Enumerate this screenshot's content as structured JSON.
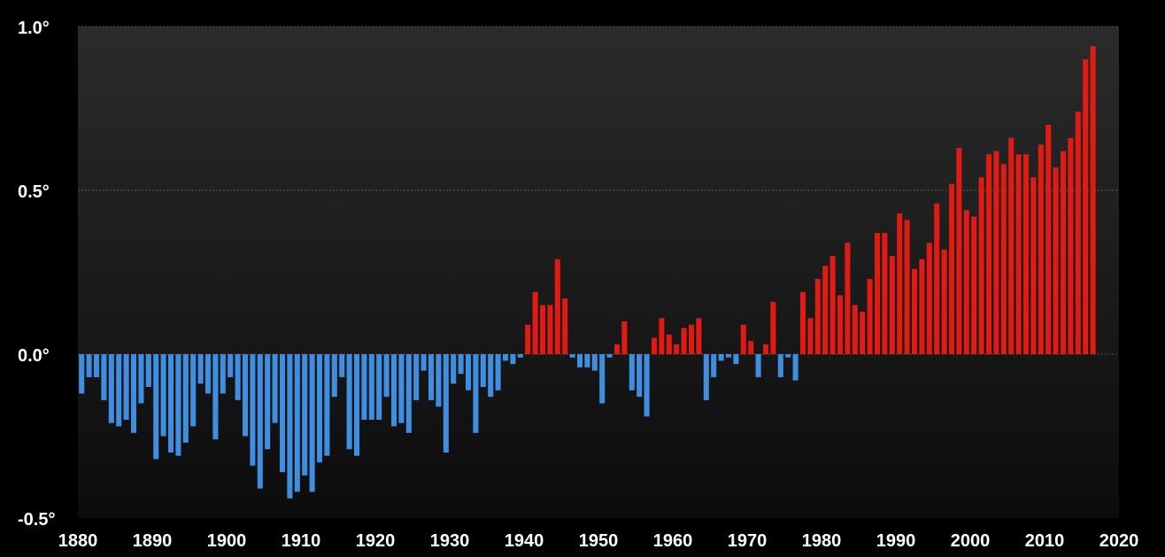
{
  "chart_data": {
    "type": "bar",
    "title": "",
    "xlabel": "",
    "ylabel": "",
    "ylim": [
      -0.5,
      1.0
    ],
    "xlim": [
      1880,
      2020
    ],
    "grid": true,
    "legend": "none",
    "y_ticks": [
      {
        "value": 1.0,
        "label": "1.0°"
      },
      {
        "value": 0.5,
        "label": "0.5°"
      },
      {
        "value": 0.0,
        "label": "0.0°"
      },
      {
        "value": -0.5,
        "label": "-0.5°"
      }
    ],
    "x_ticks": [
      {
        "value": 1880,
        "label": "1880"
      },
      {
        "value": 1890,
        "label": "1890"
      },
      {
        "value": 1900,
        "label": "1900"
      },
      {
        "value": 1910,
        "label": "1910"
      },
      {
        "value": 1920,
        "label": "1920"
      },
      {
        "value": 1930,
        "label": "1930"
      },
      {
        "value": 1940,
        "label": "1940"
      },
      {
        "value": 1950,
        "label": "1950"
      },
      {
        "value": 1960,
        "label": "1960"
      },
      {
        "value": 1970,
        "label": "1970"
      },
      {
        "value": 1980,
        "label": "1980"
      },
      {
        "value": 1990,
        "label": "1990"
      },
      {
        "value": 2000,
        "label": "2000"
      },
      {
        "value": 2010,
        "label": "2010"
      },
      {
        "value": 2020,
        "label": "2020"
      }
    ],
    "colors": {
      "positive": "#e01b14",
      "negative": "#3f8ee0",
      "plot_background_top": "#2b2b2b",
      "plot_background_bottom": "#0c0c0c",
      "gridline": "#555555",
      "text": "#ffffff"
    },
    "x": [
      1880,
      1881,
      1882,
      1883,
      1884,
      1885,
      1886,
      1887,
      1888,
      1889,
      1890,
      1891,
      1892,
      1893,
      1894,
      1895,
      1896,
      1897,
      1898,
      1899,
      1900,
      1901,
      1902,
      1903,
      1904,
      1905,
      1906,
      1907,
      1908,
      1909,
      1910,
      1911,
      1912,
      1913,
      1914,
      1915,
      1916,
      1917,
      1918,
      1919,
      1920,
      1921,
      1922,
      1923,
      1924,
      1925,
      1926,
      1927,
      1928,
      1929,
      1930,
      1931,
      1932,
      1933,
      1934,
      1935,
      1936,
      1937,
      1938,
      1939,
      1940,
      1941,
      1942,
      1943,
      1944,
      1945,
      1946,
      1947,
      1948,
      1949,
      1950,
      1951,
      1952,
      1953,
      1954,
      1955,
      1956,
      1957,
      1958,
      1959,
      1960,
      1961,
      1962,
      1963,
      1964,
      1965,
      1966,
      1967,
      1968,
      1969,
      1970,
      1971,
      1972,
      1973,
      1974,
      1975,
      1976,
      1977,
      1978,
      1979,
      1980,
      1981,
      1982,
      1983,
      1984,
      1985,
      1986,
      1987,
      1988,
      1989,
      1990,
      1991,
      1992,
      1993,
      1994,
      1995,
      1996,
      1997,
      1998,
      1999,
      2000,
      2001,
      2002,
      2003,
      2004,
      2005,
      2006,
      2007,
      2008,
      2009,
      2010,
      2011,
      2012,
      2013,
      2014,
      2015,
      2016
    ],
    "values": [
      -0.12,
      -0.07,
      -0.07,
      -0.14,
      -0.21,
      -0.22,
      -0.2,
      -0.24,
      -0.15,
      -0.1,
      -0.32,
      -0.25,
      -0.3,
      -0.31,
      -0.27,
      -0.22,
      -0.09,
      -0.12,
      -0.26,
      -0.12,
      -0.07,
      -0.14,
      -0.25,
      -0.34,
      -0.41,
      -0.29,
      -0.21,
      -0.36,
      -0.44,
      -0.42,
      -0.37,
      -0.42,
      -0.33,
      -0.31,
      -0.13,
      -0.07,
      -0.29,
      -0.31,
      -0.2,
      -0.2,
      -0.2,
      -0.13,
      -0.22,
      -0.21,
      -0.24,
      -0.14,
      -0.05,
      -0.14,
      -0.16,
      -0.3,
      -0.09,
      -0.06,
      -0.11,
      -0.24,
      -0.1,
      -0.13,
      -0.11,
      -0.02,
      -0.03,
      -0.01,
      0.09,
      0.19,
      0.15,
      0.15,
      0.29,
      0.17,
      -0.01,
      -0.04,
      -0.04,
      -0.05,
      -0.15,
      -0.01,
      0.03,
      0.1,
      -0.11,
      -0.13,
      -0.19,
      0.05,
      0.11,
      0.06,
      0.03,
      0.08,
      0.09,
      0.11,
      -0.14,
      -0.07,
      -0.02,
      -0.01,
      -0.03,
      0.09,
      0.04,
      -0.07,
      0.03,
      0.16,
      -0.07,
      -0.01,
      -0.08,
      0.19,
      0.11,
      0.23,
      0.27,
      0.3,
      0.18,
      0.34,
      0.15,
      0.13,
      0.23,
      0.37,
      0.37,
      0.3,
      0.43,
      0.41,
      0.26,
      0.29,
      0.34,
      0.46,
      0.32,
      0.52,
      0.63,
      0.44,
      0.42,
      0.54,
      0.61,
      0.62,
      0.58,
      0.66,
      0.61,
      0.61,
      0.54,
      0.64,
      0.7,
      0.57,
      0.62,
      0.66,
      0.74,
      0.9,
      0.94
    ]
  }
}
